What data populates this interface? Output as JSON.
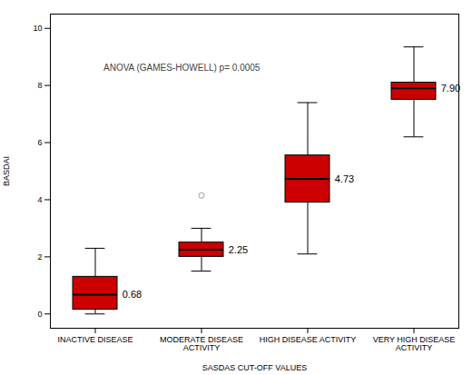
{
  "chart_data": {
    "type": "box",
    "categories": [
      "INACTIVE DISEASE",
      "MODERATE DISEASE\nACTIVITY",
      "HIGH DISEASE ACTIVITY",
      "VERY HIGH DISEASE\nACTIVITY"
    ],
    "boxes": [
      {
        "q1": 0.15,
        "median": 0.68,
        "q3": 1.3,
        "whislo": 0.0,
        "whishi": 2.3,
        "fliers": [],
        "label": "0.68"
      },
      {
        "q1": 2.0,
        "median": 2.25,
        "q3": 2.5,
        "whislo": 1.5,
        "whishi": 3.0,
        "fliers": [
          4.15
        ],
        "label": "2.25"
      },
      {
        "q1": 3.9,
        "median": 4.73,
        "q3": 5.55,
        "whislo": 2.1,
        "whishi": 7.4,
        "fliers": [],
        "label": "4.73"
      },
      {
        "q1": 7.5,
        "median": 7.9,
        "q3": 8.1,
        "whislo": 6.2,
        "whishi": 9.35,
        "fliers": [],
        "label": "7.90"
      }
    ],
    "color": "#CC0000",
    "xlabel": "SASDAS CUT-OFF VALUES",
    "ylabel": "BASDAI",
    "annotation": "ANOVA (GAMES-HOWELL) p= 0.0005",
    "ylim": [
      -0.5,
      10.5
    ],
    "yticks": [
      0,
      2,
      4,
      6,
      8,
      10
    ],
    "grid": false,
    "data_labels": true
  }
}
